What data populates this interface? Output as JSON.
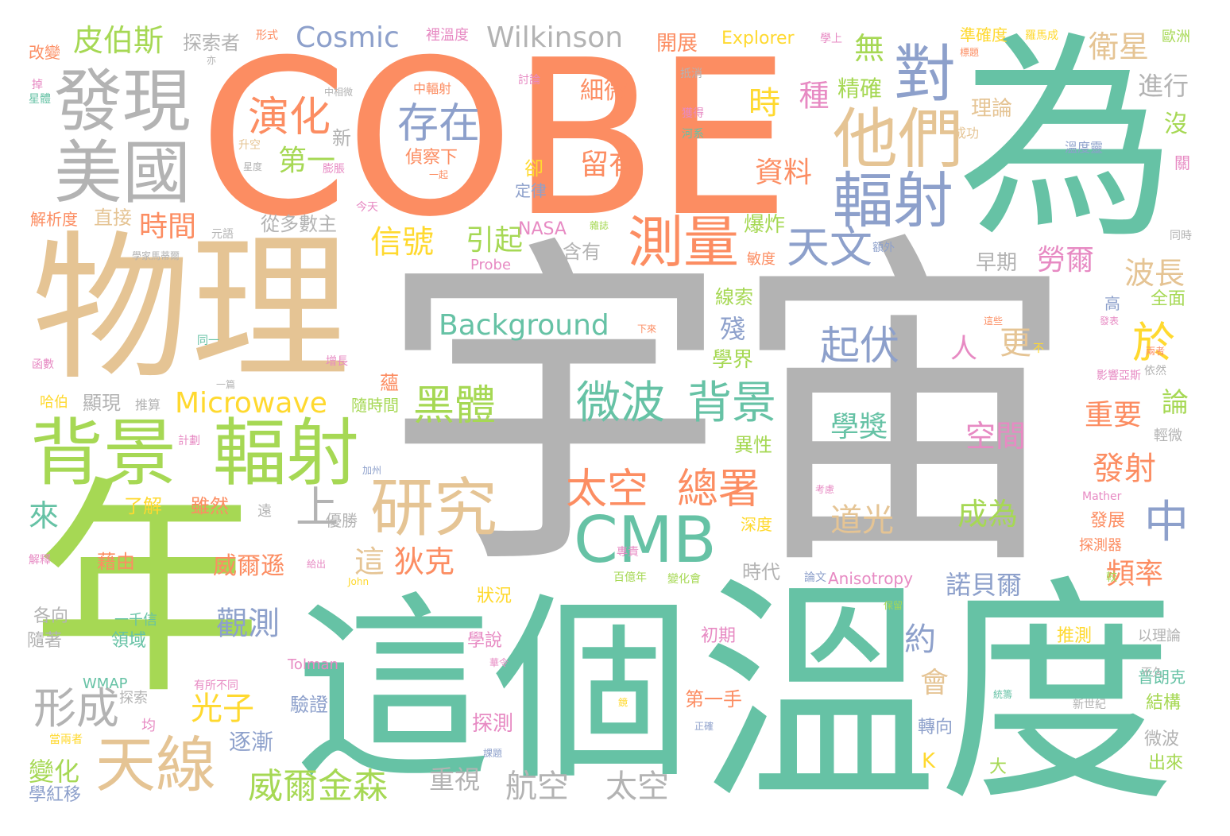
{
  "palette": {
    "orange": "#fc8d62",
    "teal": "#66c2a5",
    "tan": "#e5c494",
    "gray": "#b3b3b3",
    "green": "#a6d854",
    "blue": "#8da0cb",
    "pink": "#e78ac3",
    "yellow": "#ffd92f"
  },
  "words": [
    {
      "text": "宇宙",
      "color": "gray"
    },
    {
      "text": "COBE",
      "color": "orange"
    },
    {
      "text": "為",
      "color": "teal"
    },
    {
      "text": "溫度",
      "color": "teal"
    },
    {
      "text": "這個",
      "color": "teal"
    },
    {
      "text": "年",
      "color": "green"
    },
    {
      "text": "物理",
      "color": "tan"
    },
    {
      "text": "發現",
      "color": "gray"
    },
    {
      "text": "美國",
      "color": "gray"
    },
    {
      "text": "背景",
      "color": "green"
    },
    {
      "text": "輻射",
      "color": "green"
    },
    {
      "text": "他們",
      "color": "tan"
    },
    {
      "text": "對",
      "color": "blue"
    },
    {
      "text": "輻射",
      "color": "blue"
    },
    {
      "text": "測量",
      "color": "orange"
    },
    {
      "text": "天文",
      "color": "blue"
    },
    {
      "text": "於",
      "color": "yellow"
    },
    {
      "text": "研究",
      "color": "tan"
    },
    {
      "text": "CMB",
      "color": "teal"
    },
    {
      "text": "天線",
      "color": "tan"
    },
    {
      "text": "微波",
      "color": "teal"
    },
    {
      "text": "背景",
      "color": "teal"
    },
    {
      "text": "演化",
      "color": "orange"
    },
    {
      "text": "存在",
      "color": "blue"
    },
    {
      "text": "起伏",
      "color": "blue"
    },
    {
      "text": "太空",
      "color": "orange"
    },
    {
      "text": "總署",
      "color": "orange"
    },
    {
      "text": "中",
      "color": "blue"
    },
    {
      "text": "黑體",
      "color": "green"
    },
    {
      "text": "上",
      "color": "gray"
    },
    {
      "text": "形成",
      "color": "gray"
    },
    {
      "text": "Cosmic",
      "color": "blue"
    },
    {
      "text": "Wilkinson",
      "color": "gray"
    },
    {
      "text": "Background",
      "color": "teal"
    },
    {
      "text": "Microwave",
      "color": "yellow"
    },
    {
      "text": "皮伯斯",
      "color": "green"
    },
    {
      "text": "探索者",
      "color": "gray"
    },
    {
      "text": "開展",
      "color": "orange"
    },
    {
      "text": "Explorer",
      "color": "yellow"
    },
    {
      "text": "衛星",
      "color": "tan"
    },
    {
      "text": "時",
      "color": "yellow"
    },
    {
      "text": "種",
      "color": "pink"
    },
    {
      "text": "精確",
      "color": "green"
    },
    {
      "text": "無",
      "color": "green"
    },
    {
      "text": "進行",
      "color": "gray"
    },
    {
      "text": "理論",
      "color": "tan"
    },
    {
      "text": "沒",
      "color": "green"
    },
    {
      "text": "細微",
      "color": "orange"
    },
    {
      "text": "留有",
      "color": "orange"
    },
    {
      "text": "資料",
      "color": "orange"
    },
    {
      "text": "第一",
      "color": "green"
    },
    {
      "text": "偵察下",
      "color": "orange"
    },
    {
      "text": "新",
      "color": "gray"
    },
    {
      "text": "定律",
      "color": "blue"
    },
    {
      "text": "卻",
      "color": "yellow"
    },
    {
      "text": "時間",
      "color": "orange"
    },
    {
      "text": "直接",
      "color": "tan"
    },
    {
      "text": "解析度",
      "color": "orange"
    },
    {
      "text": "從多數主",
      "color": "gray"
    },
    {
      "text": "信號",
      "color": "yellow"
    },
    {
      "text": "引起",
      "color": "green"
    },
    {
      "text": "NASA",
      "color": "pink"
    },
    {
      "text": "爆炸",
      "color": "green"
    },
    {
      "text": "含有",
      "color": "gray"
    },
    {
      "text": "勞爾",
      "color": "pink"
    },
    {
      "text": "波長",
      "color": "tan"
    },
    {
      "text": "早期",
      "color": "gray"
    },
    {
      "text": "Probe",
      "color": "pink"
    },
    {
      "text": "線索",
      "color": "green"
    },
    {
      "text": "殘",
      "color": "blue"
    },
    {
      "text": "學界",
      "color": "green"
    },
    {
      "text": "人",
      "color": "pink"
    },
    {
      "text": "更",
      "color": "tan"
    },
    {
      "text": "全面",
      "color": "green"
    },
    {
      "text": "論",
      "color": "green"
    },
    {
      "text": "重要",
      "color": "orange"
    },
    {
      "text": "發射",
      "color": "orange"
    },
    {
      "text": "學獎",
      "color": "teal"
    },
    {
      "text": "空間",
      "color": "pink"
    },
    {
      "text": "異性",
      "color": "green"
    },
    {
      "text": "道光",
      "color": "tan"
    },
    {
      "text": "成為",
      "color": "green"
    },
    {
      "text": "諾貝爾",
      "color": "blue"
    },
    {
      "text": "頻率",
      "color": "orange"
    },
    {
      "text": "約",
      "color": "blue"
    },
    {
      "text": "會",
      "color": "tan"
    },
    {
      "text": "這",
      "color": "tan"
    },
    {
      "text": "狄克",
      "color": "orange"
    },
    {
      "text": "威爾遜",
      "color": "orange"
    },
    {
      "text": "觀測",
      "color": "blue"
    },
    {
      "text": "光子",
      "color": "yellow"
    },
    {
      "text": "威爾金森",
      "color": "green"
    },
    {
      "text": "航空",
      "color": "gray"
    },
    {
      "text": "太空",
      "color": "gray"
    },
    {
      "text": "重視",
      "color": "gray"
    },
    {
      "text": "Anisotropy",
      "color": "pink"
    },
    {
      "text": "Tolman",
      "color": "pink"
    },
    {
      "text": "WMAP",
      "color": "teal"
    },
    {
      "text": "狀況",
      "color": "yellow"
    },
    {
      "text": "時代",
      "color": "gray"
    },
    {
      "text": "深度",
      "color": "yellow"
    },
    {
      "text": "初期",
      "color": "pink"
    },
    {
      "text": "第一手",
      "color": "orange"
    },
    {
      "text": "學說",
      "color": "pink"
    },
    {
      "text": "探測",
      "color": "pink"
    },
    {
      "text": "轉向",
      "color": "blue"
    },
    {
      "text": "推測",
      "color": "yellow"
    },
    {
      "text": "結構",
      "color": "green"
    },
    {
      "text": "微波",
      "color": "gray"
    },
    {
      "text": "出來",
      "color": "green"
    },
    {
      "text": "大",
      "color": "green"
    },
    {
      "text": "K",
      "color": "yellow"
    },
    {
      "text": "驗證",
      "color": "blue"
    },
    {
      "text": "逐漸",
      "color": "blue"
    },
    {
      "text": "變化",
      "color": "green"
    },
    {
      "text": "學紅移",
      "color": "blue"
    },
    {
      "text": "隨著",
      "color": "gray"
    },
    {
      "text": "各向",
      "color": "gray"
    },
    {
      "text": "領域",
      "color": "teal"
    },
    {
      "text": "一千信",
      "color": "teal"
    },
    {
      "text": "藉由",
      "color": "orange"
    },
    {
      "text": "雖然",
      "color": "orange"
    },
    {
      "text": "了解",
      "color": "yellow"
    },
    {
      "text": "來",
      "color": "teal"
    },
    {
      "text": "優勝",
      "color": "gray"
    },
    {
      "text": "顯現",
      "color": "gray"
    },
    {
      "text": "推算",
      "color": "gray"
    },
    {
      "text": "隨時間",
      "color": "green"
    },
    {
      "text": "蘊",
      "color": "orange"
    },
    {
      "text": "哈伯",
      "color": "yellow"
    },
    {
      "text": "改變",
      "color": "orange"
    },
    {
      "text": "形式",
      "color": "orange"
    },
    {
      "text": "裡溫度",
      "color": "pink"
    },
    {
      "text": "準確度",
      "color": "yellow"
    },
    {
      "text": "歐洲",
      "color": "green"
    },
    {
      "text": "中輻射",
      "color": "orange"
    },
    {
      "text": "普朗克",
      "color": "teal"
    },
    {
      "text": "以理論",
      "color": "gray"
    },
    {
      "text": "發展",
      "color": "orange"
    },
    {
      "text": "探測器",
      "color": "orange"
    },
    {
      "text": "依然",
      "color": "gray"
    },
    {
      "text": "輕微",
      "color": "gray"
    },
    {
      "text": "溫度靈",
      "color": "blue"
    },
    {
      "text": "同時",
      "color": "gray"
    },
    {
      "text": "關",
      "color": "pink"
    },
    {
      "text": "高",
      "color": "blue"
    },
    {
      "text": "新世紀",
      "color": "gray"
    },
    {
      "text": "不久",
      "color": "gray"
    },
    {
      "text": "Mather",
      "color": "pink"
    },
    {
      "text": "John",
      "color": "yellow"
    },
    {
      "text": "論文",
      "color": "blue"
    },
    {
      "text": "百億年",
      "color": "green"
    },
    {
      "text": "變化會",
      "color": "green"
    },
    {
      "text": "敏度",
      "color": "orange"
    },
    {
      "text": "額外",
      "color": "blue"
    },
    {
      "text": "成功",
      "color": "tan"
    },
    {
      "text": "獲得",
      "color": "pink"
    },
    {
      "text": "河系",
      "color": "teal"
    },
    {
      "text": "抵消",
      "color": "gray"
    },
    {
      "text": "討論",
      "color": "pink"
    },
    {
      "text": "升空",
      "color": "tan"
    },
    {
      "text": "膨脹",
      "color": "pink"
    },
    {
      "text": "同一",
      "color": "teal"
    },
    {
      "text": "函數",
      "color": "pink"
    },
    {
      "text": "增長",
      "color": "pink"
    },
    {
      "text": "一篇",
      "color": "gray"
    },
    {
      "text": "計劃",
      "color": "pink"
    },
    {
      "text": "解釋",
      "color": "pink"
    },
    {
      "text": "加州",
      "color": "blue"
    },
    {
      "text": "給出",
      "color": "pink"
    },
    {
      "text": "今天",
      "color": "pink"
    },
    {
      "text": "元語",
      "color": "gray"
    },
    {
      "text": "一起",
      "color": "orange"
    },
    {
      "text": "亦",
      "color": "gray"
    },
    {
      "text": "星體",
      "color": "teal"
    },
    {
      "text": "掉",
      "color": "pink"
    },
    {
      "text": "保留",
      "color": "green"
    },
    {
      "text": "鏡",
      "color": "yellow"
    },
    {
      "text": "正確",
      "color": "blue"
    },
    {
      "text": "課題",
      "color": "blue"
    },
    {
      "text": "當兩者",
      "color": "yellow"
    },
    {
      "text": "均",
      "color": "pink"
    },
    {
      "text": "探索",
      "color": "gray"
    },
    {
      "text": "有所不同",
      "color": "pink"
    },
    {
      "text": "華令",
      "color": "pink"
    },
    {
      "text": "遠",
      "color": "gray"
    },
    {
      "text": "不",
      "color": "yellow"
    },
    {
      "text": "這些",
      "color": "orange"
    },
    {
      "text": "兩者",
      "color": "orange"
    },
    {
      "text": "發表",
      "color": "pink"
    },
    {
      "text": "較",
      "color": "green"
    },
    {
      "text": "標題",
      "color": "orange"
    },
    {
      "text": "羅馬成",
      "color": "yellow"
    },
    {
      "text": "學上",
      "color": "pink"
    },
    {
      "text": "下來",
      "color": "orange"
    },
    {
      "text": "雜誌",
      "color": "green"
    },
    {
      "text": "專責",
      "color": "pink"
    },
    {
      "text": "考慮",
      "color": "pink"
    },
    {
      "text": "統籌",
      "color": "teal"
    },
    {
      "text": "影響亞斯",
      "color": "pink"
    },
    {
      "text": "學家馬蒂爾",
      "color": "gray"
    },
    {
      "text": "中相微",
      "color": "gray"
    },
    {
      "text": "星度",
      "color": "gray"
    }
  ]
}
